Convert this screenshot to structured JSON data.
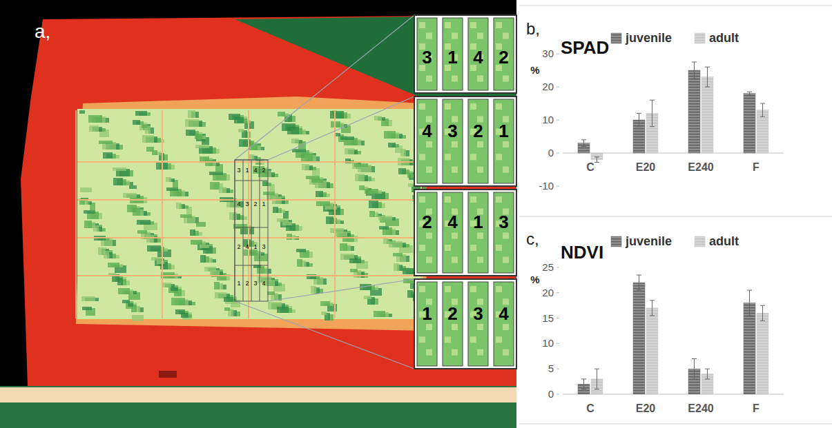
{
  "panel_a": {
    "label": "a,",
    "rows": [
      [
        3,
        1,
        4,
        2
      ],
      [
        4,
        3,
        2,
        1
      ],
      [
        2,
        4,
        1,
        3
      ],
      [
        1,
        2,
        3,
        4
      ]
    ]
  },
  "chart_data": [
    {
      "type": "bar",
      "label": "b,",
      "title": "SPAD",
      "y_label": "%",
      "categories": [
        "C",
        "E20",
        "E240",
        "F"
      ],
      "series": [
        {
          "name": "juvenile",
          "color": "#6e6e6e",
          "values": [
            3,
            10,
            25,
            18
          ],
          "errors": [
            1,
            2,
            2.5,
            0.5
          ]
        },
        {
          "name": "adult",
          "color": "#c8c8c8",
          "values": [
            -2,
            12,
            23,
            13
          ],
          "errors": [
            0.8,
            4,
            3,
            2
          ]
        }
      ],
      "ylim": [
        -10,
        30
      ],
      "yticks": [
        -10,
        0,
        10,
        20,
        30
      ],
      "grid": false,
      "legend": "top-right"
    },
    {
      "type": "bar",
      "label": "c,",
      "title": "NDVI",
      "y_label": "%",
      "categories": [
        "C",
        "E20",
        "E240",
        "F"
      ],
      "series": [
        {
          "name": "juvenile",
          "color": "#6e6e6e",
          "values": [
            2,
            22,
            5,
            18
          ],
          "errors": [
            1,
            1.5,
            2,
            2.5
          ]
        },
        {
          "name": "adult",
          "color": "#c8c8c8",
          "values": [
            3,
            17,
            4,
            16
          ],
          "errors": [
            2,
            1.5,
            1,
            1.5
          ]
        }
      ],
      "ylim": [
        0,
        25
      ],
      "yticks": [
        0,
        5,
        10,
        15,
        20,
        25
      ],
      "grid": false,
      "legend": "top-right"
    }
  ]
}
